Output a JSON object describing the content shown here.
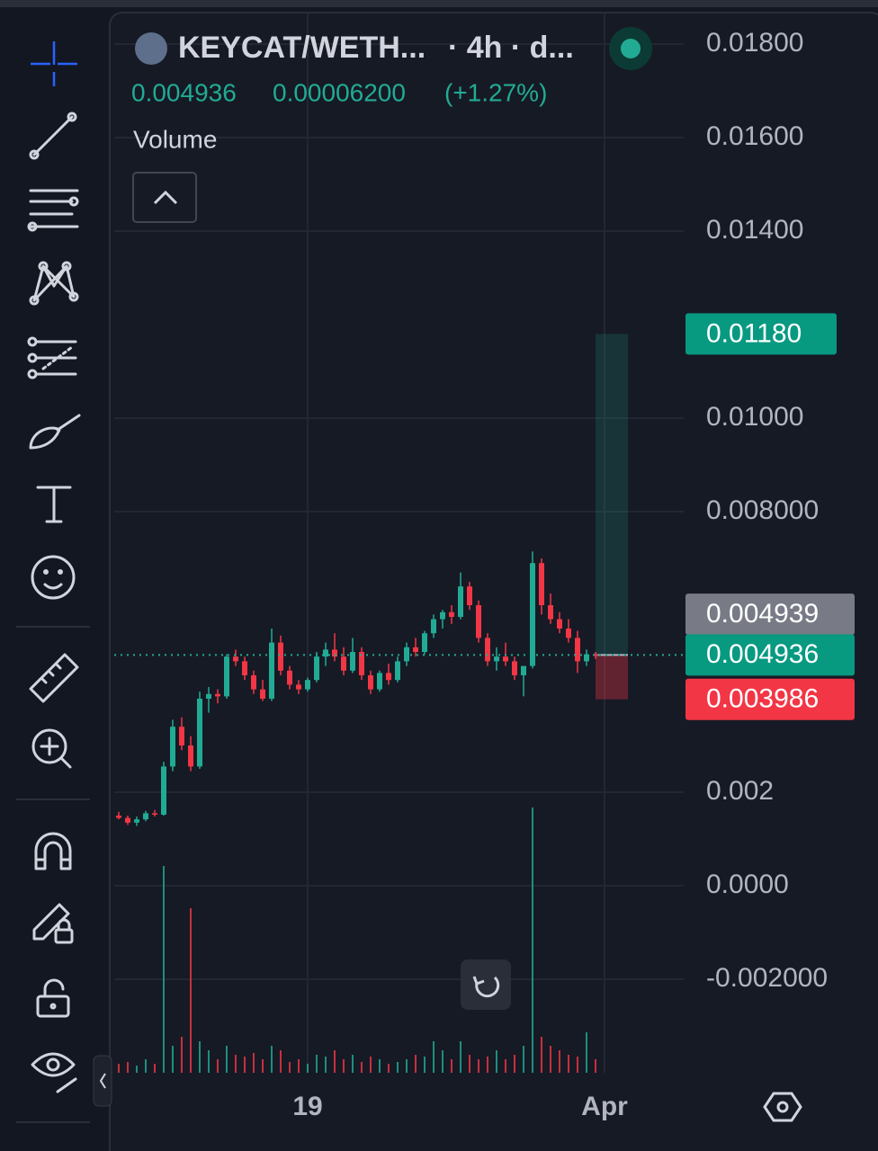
{
  "chart_data": {
    "type": "candlestick",
    "title": "KEYCAT/WETH...",
    "subtitle": "· 4h · d...",
    "header_values": [
      "0.004936",
      "0.00006200",
      "(+1.27%)"
    ],
    "indicator": "Volume",
    "up_color": "#22ab94",
    "down_color": "#f23645",
    "open": [
      0.0015,
      0.00145,
      0.00135,
      0.00142,
      0.00155,
      0.00152,
      0.00255,
      0.0034,
      0.003,
      0.00255,
      0.004,
      0.0041,
      0.00405,
      0.0049,
      0.0048,
      0.0045,
      0.0042,
      0.004,
      0.0052,
      0.0046,
      0.0043,
      0.0042,
      0.0044,
      0.0049,
      0.00505,
      0.0049,
      0.0046,
      0.005,
      0.0045,
      0.0042,
      0.00455,
      0.0044,
      0.0048,
      0.0051,
      0.005,
      0.0054,
      0.0057,
      0.00585,
      0.00575,
      0.0064,
      0.006,
      0.0053,
      0.0048,
      0.0049,
      0.0048,
      0.0045,
      0.0047,
      0.0069,
      0.006,
      0.0057,
      0.0055,
      0.0053,
      0.0048,
      0.00495
    ],
    "high": [
      0.00158,
      0.0015,
      0.00148,
      0.0016,
      0.00162,
      0.00265,
      0.00355,
      0.0036,
      0.0032,
      0.00415,
      0.00425,
      0.0042,
      0.00495,
      0.00505,
      0.0049,
      0.0046,
      0.0044,
      0.0055,
      0.00535,
      0.0047,
      0.0044,
      0.00445,
      0.005,
      0.0052,
      0.0054,
      0.0051,
      0.0053,
      0.0051,
      0.0046,
      0.0046,
      0.00475,
      0.0049,
      0.0052,
      0.0053,
      0.00545,
      0.0058,
      0.0059,
      0.006,
      0.0067,
      0.0065,
      0.0061,
      0.0054,
      0.0051,
      0.0052,
      0.0049,
      0.0046,
      0.00715,
      0.007,
      0.00625,
      0.00585,
      0.0057,
      0.00545,
      0.00505,
      0.005
    ],
    "low": [
      0.00142,
      0.0013,
      0.00128,
      0.00138,
      0.00148,
      0.0015,
      0.00245,
      0.0029,
      0.00245,
      0.0025,
      0.0037,
      0.0039,
      0.004,
      0.0047,
      0.0044,
      0.0041,
      0.00395,
      0.00395,
      0.0045,
      0.0042,
      0.0041,
      0.00415,
      0.00435,
      0.0047,
      0.0048,
      0.0045,
      0.00455,
      0.0044,
      0.0041,
      0.00415,
      0.0043,
      0.00435,
      0.0047,
      0.0049,
      0.00495,
      0.0053,
      0.0055,
      0.0056,
      0.0057,
      0.0059,
      0.0052,
      0.0047,
      0.0046,
      0.0047,
      0.0044,
      0.00405,
      0.00465,
      0.0058,
      0.0056,
      0.0054,
      0.0052,
      0.00455,
      0.0047,
      0.00485
    ],
    "close": [
      0.00145,
      0.00135,
      0.00142,
      0.00155,
      0.00152,
      0.00255,
      0.0034,
      0.003,
      0.00255,
      0.004,
      0.0041,
      0.00405,
      0.0049,
      0.0048,
      0.0045,
      0.0042,
      0.004,
      0.0052,
      0.0046,
      0.0043,
      0.0042,
      0.0044,
      0.0049,
      0.00505,
      0.0049,
      0.0046,
      0.005,
      0.0045,
      0.0042,
      0.00455,
      0.0044,
      0.0048,
      0.0051,
      0.005,
      0.0054,
      0.0057,
      0.00585,
      0.00575,
      0.0064,
      0.006,
      0.0053,
      0.0048,
      0.0049,
      0.0048,
      0.0045,
      0.0047,
      0.0069,
      0.006,
      0.0057,
      0.0055,
      0.0053,
      0.0048,
      0.00495,
      0.004936
    ],
    "volume": [
      10,
      12,
      8,
      15,
      10,
      230,
      30,
      40,
      183,
      35,
      25,
      15,
      30,
      20,
      18,
      22,
      15,
      30,
      25,
      12,
      15,
      10,
      20,
      18,
      25,
      15,
      20,
      12,
      18,
      15,
      10,
      12,
      15,
      20,
      18,
      35,
      25,
      15,
      35,
      20,
      15,
      18,
      25,
      15,
      20,
      30,
      295,
      40,
      30,
      25,
      20,
      18,
      45,
      15
    ],
    "xlim": [
      -0.5,
      62.8
    ],
    "xticks": [
      {
        "value": 21,
        "label": "19"
      },
      {
        "value": 54,
        "label": "Apr"
      }
    ],
    "ylim": [
      -0.004,
      0.01875
    ],
    "yticks": [
      {
        "value": 0.018,
        "label": "0.01800"
      },
      {
        "value": 0.016,
        "label": "0.01600"
      },
      {
        "value": 0.014,
        "label": "0.01400"
      },
      {
        "value": 0.01,
        "label": "0.01000"
      },
      {
        "value": 0.008,
        "label": "0.008000"
      },
      0.002,
      {
        "value": 0,
        "label": "0.0000"
      },
      {
        "value": -0.002,
        "label": "-0.002000"
      }
    ],
    "grid": true,
    "position": {
      "target": {
        "value": 0.0118,
        "label": "0.01180"
      },
      "entry": 0.004936,
      "stop": 0.003986
    },
    "reference_price": 0.004939
  }
}
